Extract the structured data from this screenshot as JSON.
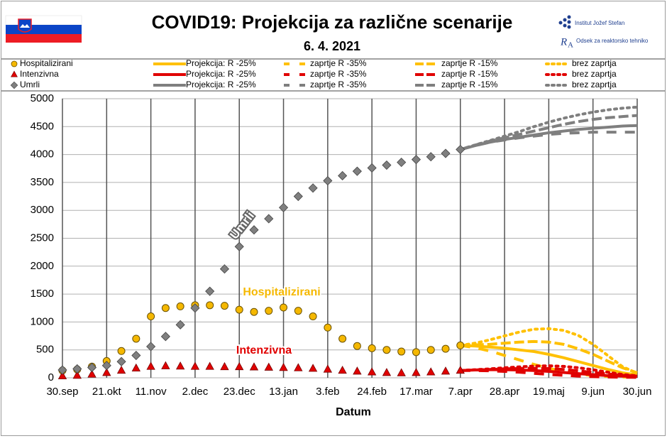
{
  "chart_data": {
    "type": "line",
    "title": "COVID19: Projekcija za različne scenarije",
    "subtitle": "6. 4. 2021",
    "logos": [
      "Institut Jožef Stefan",
      "Odsek za reaktorsko tehniko"
    ],
    "x_label": "Datum",
    "annotations": [
      "Umrli",
      "Hospitalizirani",
      "Intenzivna"
    ],
    "xlim": [
      0,
      273
    ],
    "xticks": [
      {
        "value": 0,
        "label": "30.sep"
      },
      {
        "value": 21,
        "label": "21.okt"
      },
      {
        "value": 42,
        "label": "11.nov"
      },
      {
        "value": 63,
        "label": "2.dec"
      },
      {
        "value": 84,
        "label": "23.dec"
      },
      {
        "value": 105,
        "label": "13.jan"
      },
      {
        "value": 126,
        "label": "3.feb"
      },
      {
        "value": 147,
        "label": "24.feb"
      },
      {
        "value": 168,
        "label": "17.mar"
      },
      {
        "value": 189,
        "label": "7.apr"
      },
      {
        "value": 210,
        "label": "28.apr"
      },
      {
        "value": 231,
        "label": "19.maj"
      },
      {
        "value": 252,
        "label": "9.jun"
      },
      {
        "value": 273,
        "label": "30.jun"
      }
    ],
    "ylim": [
      0,
      5000
    ],
    "yticks": [
      0,
      500,
      1000,
      1500,
      2000,
      2500,
      3000,
      3500,
      4000,
      4500,
      5000
    ],
    "grid": true,
    "series": [
      {
        "name": "Hospitalizirani",
        "color": "#f5b800",
        "marker": "circle",
        "x": [
          0,
          7,
          14,
          21,
          28,
          35,
          42,
          49,
          56,
          63,
          70,
          77,
          84,
          91,
          98,
          105,
          112,
          119,
          126,
          133,
          140,
          147,
          154,
          161,
          168,
          175,
          182,
          189
        ],
        "values": [
          130,
          150,
          200,
          300,
          480,
          700,
          1100,
          1250,
          1280,
          1300,
          1300,
          1290,
          1220,
          1180,
          1200,
          1260,
          1200,
          1100,
          900,
          700,
          570,
          530,
          500,
          470,
          460,
          500,
          520,
          580
        ]
      },
      {
        "name": "Projekcija: R -25%",
        "color": "#ffc000",
        "linestyle": "solid",
        "x": [
          189,
          196,
          203,
          210,
          217,
          224,
          231,
          238,
          245,
          252,
          259,
          266,
          273
        ],
        "values": [
          580,
          570,
          550,
          530,
          500,
          470,
          420,
          360,
          290,
          220,
          150,
          90,
          50
        ]
      },
      {
        "name": "zaprtje R -35%",
        "color": "#ffc000",
        "linestyle": "loosely-dashed",
        "x": [
          189,
          196,
          203,
          210,
          217,
          224,
          231,
          238,
          245,
          252,
          259,
          266,
          273
        ],
        "values": [
          580,
          540,
          480,
          400,
          320,
          240,
          170,
          110,
          70,
          40,
          25,
          15,
          10
        ]
      },
      {
        "name": "zaprtje R -15%",
        "color": "#ffc000",
        "linestyle": "dashed",
        "x": [
          189,
          196,
          203,
          210,
          217,
          224,
          231,
          238,
          245,
          252,
          259,
          266,
          273
        ],
        "values": [
          580,
          590,
          600,
          620,
          640,
          650,
          640,
          600,
          520,
          420,
          300,
          180,
          90
        ]
      },
      {
        "name": "brez zaprtja",
        "color": "#ffc000",
        "linestyle": "dotted",
        "x": [
          189,
          196,
          203,
          210,
          217,
          224,
          231,
          238,
          245,
          252,
          259,
          266,
          273
        ],
        "values": [
          580,
          620,
          680,
          750,
          820,
          870,
          880,
          850,
          760,
          600,
          400,
          200,
          80
        ]
      },
      {
        "name": "Intenzivna",
        "color": "#e00000",
        "marker": "triangle",
        "x": [
          0,
          7,
          14,
          21,
          28,
          35,
          42,
          49,
          56,
          63,
          70,
          77,
          84,
          91,
          98,
          105,
          112,
          119,
          126,
          133,
          140,
          147,
          154,
          161,
          168,
          175,
          182,
          189
        ],
        "values": [
          30,
          40,
          60,
          90,
          130,
          170,
          200,
          210,
          205,
          200,
          200,
          195,
          195,
          190,
          185,
          180,
          175,
          165,
          150,
          130,
          115,
          100,
          90,
          85,
          90,
          100,
          115,
          130
        ]
      },
      {
        "name": "Projekcija: R -25%",
        "color": "#e00000",
        "linestyle": "solid",
        "x": [
          189,
          196,
          203,
          210,
          217,
          224,
          231,
          238,
          245,
          252,
          259,
          266,
          273
        ],
        "values": [
          130,
          140,
          145,
          145,
          140,
          130,
          115,
          95,
          75,
          55,
          40,
          30,
          25
        ]
      },
      {
        "name": "zaprtje R -35%",
        "color": "#e00000",
        "linestyle": "loosely-dashed",
        "x": [
          189,
          196,
          203,
          210,
          217,
          224,
          231,
          238,
          245,
          252,
          259,
          266,
          273
        ],
        "values": [
          130,
          130,
          125,
          115,
          100,
          80,
          60,
          45,
          30,
          20,
          15,
          10,
          8
        ]
      },
      {
        "name": "zaprtje R -15%",
        "color": "#e00000",
        "linestyle": "dashed",
        "x": [
          189,
          196,
          203,
          210,
          217,
          224,
          231,
          238,
          245,
          252,
          259,
          266,
          273
        ],
        "values": [
          130,
          140,
          150,
          160,
          165,
          170,
          165,
          150,
          125,
          95,
          70,
          45,
          30
        ]
      },
      {
        "name": "brez zaprtja",
        "color": "#e00000",
        "linestyle": "dotted",
        "x": [
          189,
          196,
          203,
          210,
          217,
          224,
          231,
          238,
          245,
          252,
          259,
          266,
          273
        ],
        "values": [
          130,
          145,
          160,
          180,
          195,
          210,
          215,
          205,
          180,
          145,
          100,
          60,
          35
        ]
      },
      {
        "name": "Umrli",
        "color": "#7f7f7f",
        "marker": "diamond",
        "x": [
          0,
          7,
          14,
          21,
          28,
          35,
          42,
          49,
          56,
          63,
          70,
          77,
          84,
          91,
          98,
          105,
          112,
          119,
          126,
          133,
          140,
          147,
          154,
          161,
          168,
          175,
          182,
          189
        ],
        "values": [
          140,
          160,
          185,
          220,
          290,
          400,
          560,
          740,
          950,
          1250,
          1550,
          1950,
          2350,
          2650,
          2850,
          3050,
          3250,
          3400,
          3530,
          3620,
          3700,
          3760,
          3810,
          3860,
          3910,
          3960,
          4020,
          4090
        ]
      },
      {
        "name": "Projekcija: R -25%",
        "color": "#7f7f7f",
        "linestyle": "solid",
        "x": [
          189,
          196,
          203,
          210,
          217,
          224,
          231,
          238,
          245,
          252,
          259,
          266,
          273
        ],
        "values": [
          4090,
          4160,
          4220,
          4270,
          4310,
          4350,
          4390,
          4420,
          4450,
          4470,
          4490,
          4510,
          4520
        ]
      },
      {
        "name": "zaprtje R -35%",
        "color": "#7f7f7f",
        "linestyle": "loosely-dashed",
        "x": [
          189,
          196,
          203,
          210,
          217,
          224,
          231,
          238,
          245,
          252,
          259,
          266,
          273
        ],
        "values": [
          4090,
          4160,
          4220,
          4260,
          4300,
          4330,
          4360,
          4380,
          4390,
          4400,
          4400,
          4400,
          4400
        ]
      },
      {
        "name": "zaprtje R -15%",
        "color": "#7f7f7f",
        "linestyle": "dashed",
        "x": [
          189,
          196,
          203,
          210,
          217,
          224,
          231,
          238,
          245,
          252,
          259,
          266,
          273
        ],
        "values": [
          4090,
          4170,
          4240,
          4300,
          4360,
          4420,
          4480,
          4540,
          4590,
          4630,
          4660,
          4680,
          4700
        ]
      },
      {
        "name": "brez zaprtja",
        "color": "#7f7f7f",
        "linestyle": "dotted",
        "x": [
          189,
          196,
          203,
          210,
          217,
          224,
          231,
          238,
          245,
          252,
          259,
          266,
          273
        ],
        "values": [
          4090,
          4170,
          4250,
          4330,
          4410,
          4500,
          4580,
          4650,
          4710,
          4760,
          4800,
          4830,
          4850
        ]
      }
    ]
  }
}
